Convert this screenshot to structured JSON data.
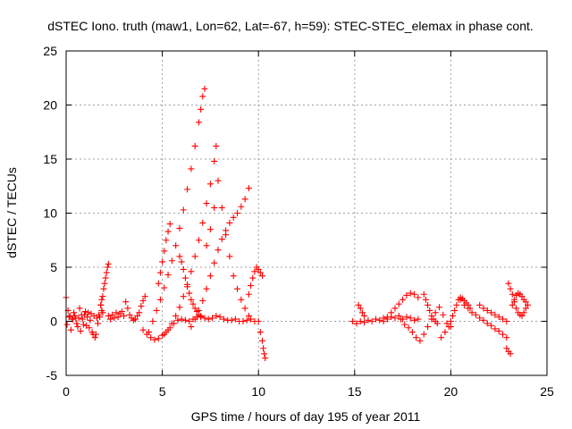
{
  "chart_data": {
    "type": "scatter",
    "title": "dSTEC Iono. truth (maw1, Lon=62, Lat=-67, h=59): STEC-STEC_elemax in phase cont.",
    "xlabel": "GPS time / hours of day 195 of year 2011",
    "ylabel": "dSTEC  / TECUs",
    "xlim": [
      0,
      25
    ],
    "ylim": [
      -5,
      25
    ],
    "xticks": [
      "0",
      "5",
      "10",
      "15",
      "20",
      "25"
    ],
    "yticks": [
      "-5",
      "0",
      "5",
      "10",
      "15",
      "20",
      "25"
    ],
    "grid": true,
    "marker": "+",
    "color": "#ff0000",
    "series": [
      {
        "x": [
          0.0,
          0.1,
          0.2,
          0.3,
          0.4,
          0.5,
          0.6,
          0.7,
          0.8,
          0.9,
          1.0,
          1.1,
          1.2,
          1.3,
          1.4,
          1.5,
          1.6,
          1.7,
          1.8,
          1.9
        ],
        "y": [
          2.2,
          1.0,
          0.5,
          0.2,
          0.8,
          0.3,
          -0.5,
          1.2,
          0.6,
          -0.3,
          0.9,
          0.4,
          -0.6,
          0.7,
          -1.2,
          -1.5,
          0.3,
          0.6,
          1.5,
          0.8
        ]
      },
      {
        "x": [
          0.05,
          0.15,
          0.25,
          0.35,
          0.45,
          0.55,
          0.65,
          0.75,
          0.85,
          0.95,
          1.05,
          1.15,
          1.25,
          1.35,
          1.45,
          1.55,
          1.65,
          1.75,
          1.85
        ],
        "y": [
          -0.3,
          0.4,
          -0.8,
          0.2,
          0.5,
          -0.2,
          0.3,
          -0.9,
          0.2,
          0.6,
          -0.4,
          0.8,
          0.1,
          -1.0,
          0.5,
          -1.2,
          -0.2,
          0.4,
          1.0
        ]
      },
      {
        "x": [
          1.8,
          1.85,
          1.9,
          1.95,
          2.0,
          2.05,
          2.1,
          2.15,
          2.2
        ],
        "y": [
          1.5,
          2.0,
          2.3,
          3.0,
          3.5,
          4.0,
          4.5,
          5.0,
          5.3
        ]
      },
      {
        "x": [
          2.2,
          2.3,
          2.4,
          2.5,
          2.6,
          2.7,
          2.8,
          2.9,
          3.0
        ],
        "y": [
          0.5,
          0.2,
          0.6,
          0.3,
          0.8,
          0.4,
          0.7,
          0.9,
          0.5
        ]
      },
      {
        "x": [
          3.1,
          3.2,
          3.3,
          3.4,
          3.5,
          3.6,
          3.7,
          3.8,
          3.9,
          4.0,
          4.1
        ],
        "y": [
          1.8,
          1.2,
          0.6,
          0.3,
          0.1,
          0.2,
          0.5,
          0.8,
          1.4,
          1.9,
          2.3
        ]
      },
      {
        "x": [
          4.0,
          4.2,
          4.4,
          4.6,
          4.8,
          5.0,
          5.2,
          5.4,
          5.6,
          5.8,
          6.0,
          6.2,
          6.4,
          6.6,
          6.8,
          7.0,
          7.2,
          7.4,
          7.6,
          7.8,
          8.0,
          8.2,
          8.4,
          8.6,
          8.8,
          9.0,
          9.2,
          9.4,
          9.6,
          9.8
        ],
        "y": [
          -0.8,
          -1.2,
          -1.5,
          -1.7,
          -1.6,
          -1.3,
          -1.0,
          -0.6,
          -0.2,
          0.1,
          0.2,
          0.1,
          0.0,
          0.2,
          0.4,
          0.5,
          0.3,
          0.2,
          0.3,
          0.5,
          0.4,
          0.2,
          0.1,
          0.1,
          0.2,
          0.0,
          0.0,
          0.1,
          0.2,
          0.0
        ]
      },
      {
        "x": [
          4.3,
          4.5,
          4.7,
          4.9,
          5.1,
          5.3,
          5.5,
          5.7,
          5.9,
          6.1,
          6.3,
          6.5,
          6.7,
          6.9,
          7.0,
          7.1,
          7.2
        ],
        "y": [
          -1.0,
          0.0,
          1.0,
          2.0,
          3.1,
          4.3,
          5.6,
          7.0,
          8.6,
          10.3,
          12.2,
          14.1,
          16.2,
          18.4,
          19.6,
          20.8,
          21.5
        ]
      },
      {
        "x": [
          4.8,
          4.9,
          5.0,
          5.1,
          5.2,
          5.3,
          5.4
        ],
        "y": [
          3.5,
          4.5,
          5.5,
          6.5,
          7.5,
          8.3,
          9.0
        ]
      },
      {
        "x": [
          5.1,
          5.3,
          5.5,
          5.7,
          5.9,
          6.1,
          6.3,
          6.5,
          6.7,
          6.9,
          7.1,
          7.3,
          7.5,
          7.7,
          7.8
        ],
        "y": [
          -1.2,
          -0.8,
          -0.2,
          0.5,
          1.3,
          2.3,
          3.4,
          4.6,
          6.0,
          7.5,
          9.1,
          10.9,
          12.7,
          14.8,
          16.2
        ]
      },
      {
        "x": [
          5.9,
          6.0,
          6.1,
          6.2,
          6.3,
          6.4,
          6.5,
          6.6,
          6.7,
          6.8,
          6.9,
          7.0
        ],
        "y": [
          6.0,
          5.5,
          4.8,
          4.0,
          3.2,
          2.6,
          2.0,
          1.6,
          1.2,
          0.9,
          0.6,
          0.4
        ]
      },
      {
        "x": [
          6.5,
          6.7,
          6.9,
          7.1,
          7.3,
          7.5,
          7.7,
          7.9,
          8.1,
          8.3,
          8.5,
          8.7,
          8.9,
          9.1,
          9.3,
          9.5
        ],
        "y": [
          -0.5,
          0.2,
          1.0,
          1.9,
          3.0,
          4.2,
          5.4,
          6.6,
          7.6,
          8.4,
          9.1,
          9.6,
          10.0,
          10.6,
          11.3,
          12.3
        ]
      },
      {
        "x": [
          7.3,
          7.5,
          7.7,
          7.9,
          8.1,
          8.3,
          8.5,
          8.7,
          8.9,
          9.1,
          9.3,
          9.5
        ],
        "y": [
          7.0,
          8.5,
          10.5,
          13.0,
          10.5,
          8.0,
          6.0,
          4.2,
          3.0,
          2.0,
          1.2,
          0.5
        ]
      },
      {
        "x": [
          9.5,
          9.6,
          9.7,
          9.8,
          9.9,
          10.0,
          10.1,
          10.2
        ],
        "y": [
          2.5,
          3.3,
          4.0,
          4.6,
          5.0,
          4.8,
          4.5,
          4.2
        ]
      },
      {
        "x": [
          10.0,
          10.1,
          10.2,
          10.25,
          10.3,
          10.35
        ],
        "y": [
          0.0,
          -1.0,
          -1.8,
          -2.5,
          -3.0,
          -3.4
        ]
      },
      {
        "x": [
          14.9,
          15.1,
          15.3,
          15.5,
          15.7,
          15.9,
          16.1,
          16.3,
          16.5,
          16.7,
          16.9,
          17.1,
          17.3,
          17.5,
          17.7,
          17.9,
          18.1,
          18.3
        ],
        "y": [
          0.0,
          -0.2,
          0.0,
          -0.1,
          0.1,
          0.0,
          0.2,
          0.1,
          0.3,
          0.2,
          0.4,
          0.3,
          0.5,
          0.2,
          0.4,
          0.3,
          0.1,
          0.2
        ]
      },
      {
        "x": [
          15.2,
          15.3,
          15.4,
          15.5
        ],
        "y": [
          1.5,
          1.2,
          0.8,
          0.5
        ]
      },
      {
        "x": [
          16.5,
          16.7,
          16.9,
          17.1,
          17.3,
          17.5,
          17.7,
          17.9,
          18.1,
          18.3
        ],
        "y": [
          0.0,
          0.4,
          0.8,
          1.2,
          1.6,
          2.0,
          2.4,
          2.6,
          2.5,
          2.2
        ]
      },
      {
        "x": [
          17.4,
          17.6,
          17.8,
          18.0,
          18.2,
          18.4,
          18.6,
          18.8,
          19.0,
          19.2,
          19.4,
          19.6,
          19.8,
          20.0
        ],
        "y": [
          0.2,
          -0.3,
          -0.6,
          -1.0,
          -1.5,
          -1.8,
          -1.2,
          -0.5,
          0.2,
          0.8,
          1.3,
          0.6,
          -0.2,
          -0.5
        ]
      },
      {
        "x": [
          18.6,
          18.7,
          18.8,
          18.9,
          19.0,
          19.1,
          19.2,
          19.3
        ],
        "y": [
          2.5,
          2.0,
          1.5,
          1.0,
          0.5,
          0.2,
          0.0,
          -0.2
        ]
      },
      {
        "x": [
          19.5,
          19.7,
          19.9,
          20.0,
          20.1,
          20.2,
          20.3,
          20.4,
          20.5,
          20.6,
          20.7,
          20.8,
          20.9,
          21.0
        ],
        "y": [
          -1.5,
          -1.0,
          -0.5,
          0.0,
          0.5,
          1.0,
          1.5,
          2.0,
          2.2,
          2.1,
          1.9,
          1.7,
          1.5,
          1.2
        ]
      },
      {
        "x": [
          20.5,
          20.7,
          20.9,
          21.1,
          21.3,
          21.5,
          21.7,
          21.9,
          22.1,
          22.3,
          22.5,
          22.7,
          22.9
        ],
        "y": [
          2.0,
          1.5,
          1.2,
          0.8,
          0.6,
          0.3,
          0.1,
          -0.2,
          -0.4,
          -0.7,
          -0.9,
          -1.2,
          -1.5
        ]
      },
      {
        "x": [
          21.5,
          21.7,
          21.9,
          22.1,
          22.3,
          22.5,
          22.7,
          22.9
        ],
        "y": [
          1.5,
          1.2,
          1.0,
          0.8,
          0.6,
          0.4,
          0.2,
          0.0
        ]
      },
      {
        "x": [
          22.9,
          23.0,
          23.1
        ],
        "y": [
          -2.5,
          -2.8,
          -3.0
        ]
      },
      {
        "x": [
          23.0,
          23.1,
          23.2,
          23.3,
          23.4,
          23.5,
          23.6,
          23.7,
          23.8,
          23.9,
          24.0
        ],
        "y": [
          3.5,
          3.0,
          2.5,
          1.8,
          1.2,
          0.8,
          0.6,
          0.5,
          0.8,
          1.2,
          1.5
        ]
      },
      {
        "x": [
          23.2,
          23.3,
          23.4,
          23.5,
          23.6,
          23.7,
          23.8,
          23.9
        ],
        "y": [
          1.5,
          2.0,
          2.4,
          2.6,
          2.5,
          2.3,
          2.0,
          1.8
        ]
      }
    ]
  }
}
